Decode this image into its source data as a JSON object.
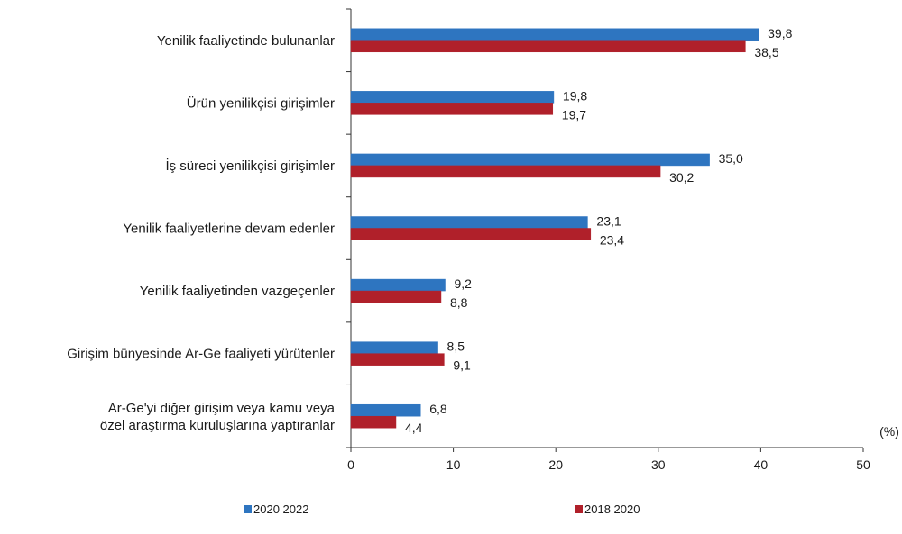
{
  "chart_data": {
    "type": "bar",
    "orientation": "horizontal",
    "categories": [
      "Yenilik faaliyetinde bulunanlar",
      "Ürün yenilikçisi girişimler",
      "İş süreci yenilikçisi girişimler",
      "Yenilik faaliyetlerine devam edenler",
      "Yenilik faaliyetinden vazgeçenler",
      "Girişim bünyesinde Ar-Ge faaliyeti yürütenler",
      [
        "Ar-Ge'yi diğer girişim veya kamu veya",
        "özel araştırma kuruluşlarına yaptıranlar"
      ]
    ],
    "series": [
      {
        "name": "2020 2022",
        "color": "#2e75c0",
        "values": [
          39.8,
          19.8,
          35.0,
          23.1,
          9.2,
          8.5,
          6.8
        ],
        "labels": [
          "39,8",
          "19,8",
          "35,0",
          "23,1",
          "9,2",
          "8,5",
          "6,8"
        ]
      },
      {
        "name": "2018 2020",
        "color": "#b0202a",
        "values": [
          38.5,
          19.7,
          30.2,
          23.4,
          8.8,
          9.1,
          4.4
        ],
        "labels": [
          "38,5",
          "19,7",
          "30,2",
          "23,4",
          "8,8",
          "9,1",
          "4,4"
        ]
      }
    ],
    "xlim": [
      0,
      50
    ],
    "xticks": [
      0,
      10,
      20,
      30,
      40,
      50
    ],
    "unit": "(%)",
    "legend_position": "bottom",
    "grid": false
  }
}
